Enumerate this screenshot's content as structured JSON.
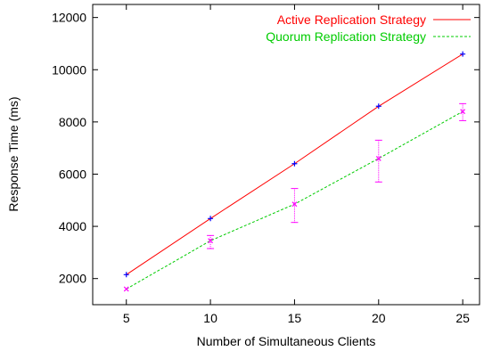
{
  "chart_data": {
    "type": "line",
    "title": "",
    "xlabel": "Number of Simultaneous Clients",
    "ylabel": "Response Time (ms)",
    "xlim": [
      3,
      26
    ],
    "ylim": [
      1000,
      12500
    ],
    "x_ticks": [
      5,
      10,
      15,
      20,
      25
    ],
    "y_ticks": [
      2000,
      4000,
      6000,
      8000,
      10000,
      12000
    ],
    "grid": false,
    "legend_position": "top-right",
    "series": [
      {
        "name": "Active Replication Strategy",
        "color": "#ff0000",
        "line_style": "solid",
        "marker_color": "#0000ff",
        "marker": "plus",
        "x": [
          5,
          10,
          15,
          20,
          25
        ],
        "y": [
          2150,
          4300,
          6400,
          8600,
          10600
        ],
        "error_low": [
          2150,
          4300,
          6400,
          8600,
          10600
        ],
        "error_high": [
          2150,
          4300,
          6400,
          8600,
          10600
        ]
      },
      {
        "name": "Quorum Replication Strategy",
        "color": "#00cc00",
        "line_style": "dashed",
        "marker_color": "#ff00ff",
        "marker": "cross",
        "x": [
          5,
          10,
          15,
          20,
          25
        ],
        "y": [
          1600,
          3450,
          4850,
          6600,
          8400
        ],
        "error_low": [
          1600,
          3150,
          4150,
          5700,
          8050
        ],
        "error_high": [
          1600,
          3650,
          5450,
          7300,
          8700
        ]
      }
    ]
  }
}
